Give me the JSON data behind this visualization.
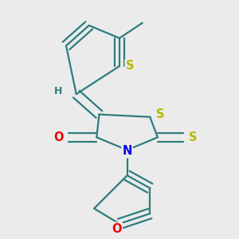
{
  "background_color": "#ebebeb",
  "bond_color": "#2d7d7d",
  "bond_width": 1.6,
  "atom_colors": {
    "S": "#b8b800",
    "N": "#0000ee",
    "O": "#ee0000",
    "H": "#2d7d7d",
    "C": "#2d7d7d"
  },
  "font_size": 10.5,
  "dbo": 0.022
}
